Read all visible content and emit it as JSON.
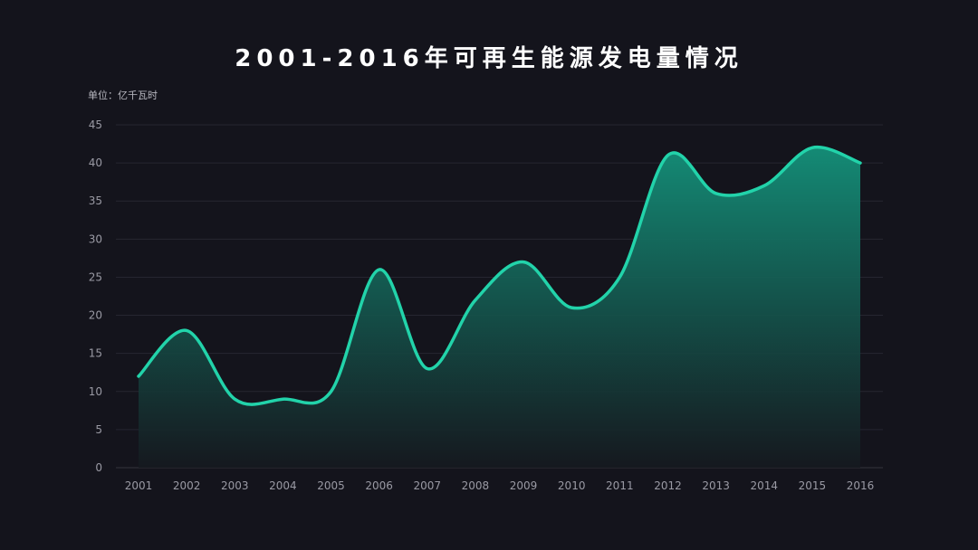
{
  "chart_data": {
    "type": "area",
    "title": "2001-2016年可再生能源发电量情况",
    "unit_label": "单位：亿千瓦时",
    "xlabel": "",
    "ylabel": "",
    "categories": [
      "2001",
      "2002",
      "2003",
      "2004",
      "2005",
      "2006",
      "2007",
      "2008",
      "2009",
      "2010",
      "2011",
      "2012",
      "2013",
      "2014",
      "2015",
      "2016"
    ],
    "values": [
      12,
      18,
      9,
      9,
      10,
      26,
      13,
      22,
      27,
      21,
      25,
      41,
      36,
      37,
      42,
      40
    ],
    "ylim": [
      0,
      45
    ],
    "yticks": [
      0,
      5,
      10,
      15,
      20,
      25,
      30,
      35,
      40,
      45
    ],
    "grid": true,
    "smooth": true,
    "colors": {
      "background": "#14141c",
      "line": "#22d3aa",
      "fill_top": "#14917a",
      "fill_bottom": "#15191f",
      "grid": "#262630"
    }
  }
}
